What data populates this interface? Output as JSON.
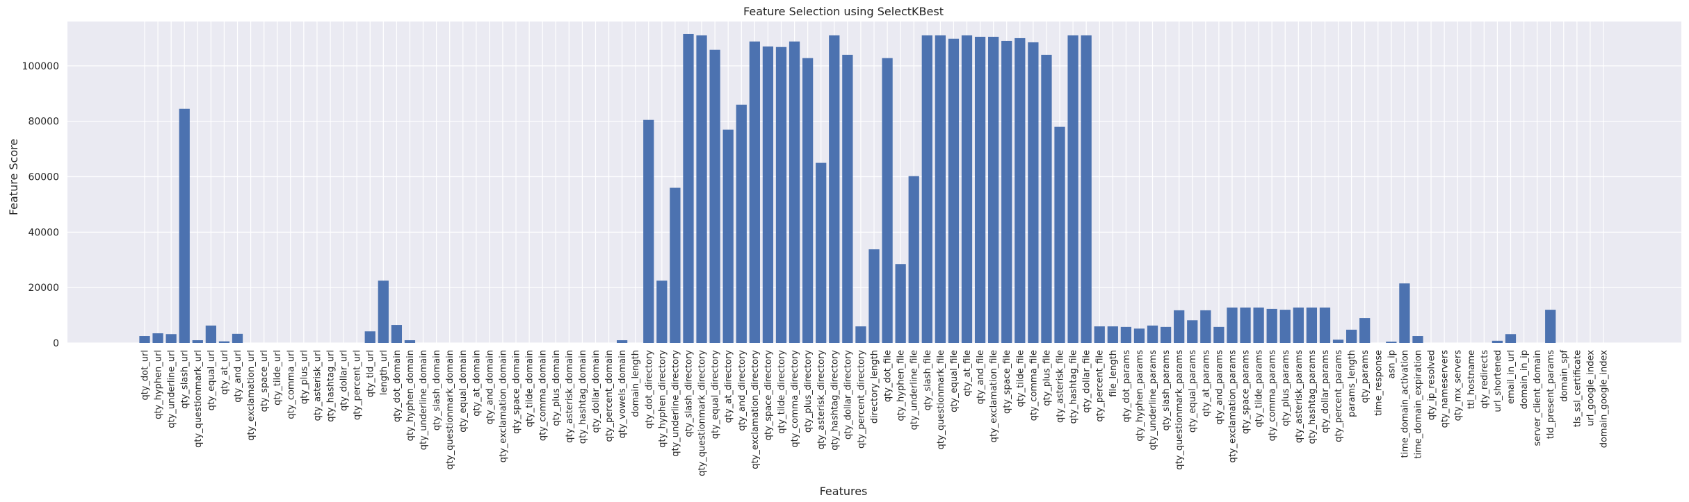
{
  "chart_data": {
    "type": "bar",
    "title": "Feature Selection using SelectKBest",
    "xlabel": "Features",
    "ylabel": "Feature Score",
    "ylim": [
      0,
      116000
    ],
    "yticks": [
      0,
      20000,
      40000,
      60000,
      80000,
      100000
    ],
    "ytick_labels": [
      "0",
      "20000",
      "40000",
      "60000",
      "80000",
      "100000"
    ],
    "grid": true,
    "legend": "none",
    "colors": {
      "bar": "#4c72b0",
      "plot_bg": "#eaeaf2",
      "grid": "#ffffff",
      "text": "#262626"
    },
    "categories": [
      "qty_dot_url",
      "qty_hyphen_url",
      "qty_underline_url",
      "qty_slash_url",
      "qty_questionmark_url",
      "qty_equal_url",
      "qty_at_url",
      "qty_and_url",
      "qty_exclamation_url",
      "qty_space_url",
      "qty_tilde_url",
      "qty_comma_url",
      "qty_plus_url",
      "qty_asterisk_url",
      "qty_hashtag_url",
      "qty_dollar_url",
      "qty_percent_url",
      "qty_tld_url",
      "length_url",
      "qty_dot_domain",
      "qty_hyphen_domain",
      "qty_underline_domain",
      "qty_slash_domain",
      "qty_questionmark_domain",
      "qty_equal_domain",
      "qty_at_domain",
      "qty_and_domain",
      "qty_exclamation_domain",
      "qty_space_domain",
      "qty_tilde_domain",
      "qty_comma_domain",
      "qty_plus_domain",
      "qty_asterisk_domain",
      "qty_hashtag_domain",
      "qty_dollar_domain",
      "qty_percent_domain",
      "qty_vowels_domain",
      "domain_length",
      "qty_dot_directory",
      "qty_hyphen_directory",
      "qty_underline_directory",
      "qty_slash_directory",
      "qty_questionmark_directory",
      "qty_equal_directory",
      "qty_at_directory",
      "qty_and_directory",
      "qty_exclamation_directory",
      "qty_space_directory",
      "qty_tilde_directory",
      "qty_comma_directory",
      "qty_plus_directory",
      "qty_asterisk_directory",
      "qty_hashtag_directory",
      "qty_dollar_directory",
      "qty_percent_directory",
      "directory_length",
      "qty_dot_file",
      "qty_hyphen_file",
      "qty_underline_file",
      "qty_slash_file",
      "qty_questionmark_file",
      "qty_equal_file",
      "qty_at_file",
      "qty_and_file",
      "qty_exclamation_file",
      "qty_space_file",
      "qty_tilde_file",
      "qty_comma_file",
      "qty_plus_file",
      "qty_asterisk_file",
      "qty_hashtag_file",
      "qty_dollar_file",
      "qty_percent_file",
      "file_length",
      "qty_dot_params",
      "qty_hyphen_params",
      "qty_underline_params",
      "qty_slash_params",
      "qty_questionmark_params",
      "qty_equal_params",
      "qty_at_params",
      "qty_and_params",
      "qty_exclamation_params",
      "qty_space_params",
      "qty_tilde_params",
      "qty_comma_params",
      "qty_plus_params",
      "qty_asterisk_params",
      "qty_hashtag_params",
      "qty_dollar_params",
      "qty_percent_params",
      "params_length",
      "qty_params",
      "time_response",
      "asn_ip",
      "time_domain_activation",
      "time_domain_expiration",
      "qty_ip_resolved",
      "qty_nameservers",
      "qty_mx_servers",
      "ttl_hostname",
      "qty_redirects",
      "url_shortened",
      "email_in_url",
      "domain_in_ip",
      "server_client_domain",
      "tld_present_params",
      "domain_spf",
      "tls_ssl_certificate",
      "url_google_index",
      "domain_google_index"
    ],
    "values": [
      2500,
      3500,
      3200,
      84500,
      1000,
      6300,
      600,
      3300,
      0,
      0,
      0,
      0,
      0,
      0,
      0,
      0,
      0,
      4200,
      22500,
      6500,
      1000,
      0,
      0,
      0,
      0,
      0,
      0,
      0,
      0,
      0,
      0,
      0,
      0,
      0,
      0,
      0,
      1000,
      0,
      80500,
      22500,
      56000,
      111500,
      111000,
      105800,
      77000,
      86000,
      108800,
      107000,
      106800,
      108800,
      102800,
      65000,
      111000,
      104000,
      6000,
      33800,
      102800,
      28500,
      60200,
      111000,
      111000,
      109800,
      111000,
      110500,
      110500,
      109000,
      110000,
      108500,
      104000,
      78000,
      111000,
      111000,
      6000,
      6000,
      5800,
      5200,
      6300,
      5800,
      11800,
      8200,
      11800,
      5800,
      12800,
      12800,
      12800,
      12300,
      12000,
      12800,
      12800,
      12800,
      1200,
      4800,
      9000,
      0,
      500,
      21500,
      2500,
      0,
      0,
      0,
      0,
      0,
      800,
      3200,
      0,
      0,
      12000,
      0,
      0,
      0,
      0
    ]
  }
}
